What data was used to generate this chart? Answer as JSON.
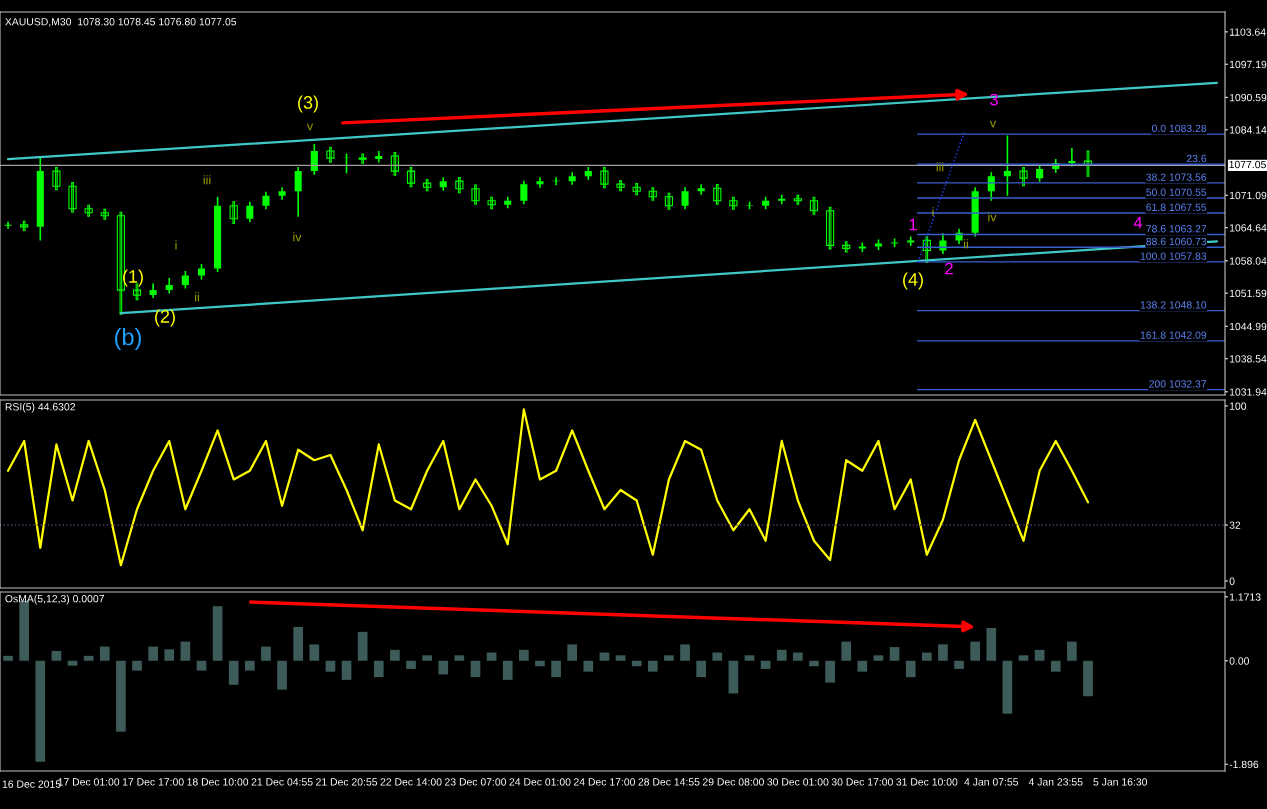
{
  "chart_data": [
    {
      "type": "candlestick",
      "title": "XAUUSD,M30  1078.30 1078.45 1076.80 1077.05",
      "color": "#00ff00",
      "categories": [
        null,
        null,
        null,
        null,
        null,
        null,
        null,
        null,
        null,
        null,
        null,
        null,
        null,
        null,
        null,
        null,
        null,
        null,
        null,
        null,
        null,
        null,
        null,
        null,
        null,
        null,
        null,
        null,
        null,
        null,
        null,
        null,
        null,
        null,
        null,
        null,
        null,
        null,
        null,
        null,
        null,
        null,
        null,
        null,
        null,
        null,
        null,
        null,
        null,
        null,
        null,
        null,
        null,
        null,
        null,
        null,
        null,
        null,
        null,
        null,
        null,
        null,
        null,
        null,
        null,
        null,
        null,
        null,
        null,
        null,
        null,
        null,
        null,
        null,
        null,
        null
      ],
      "ohlc": [
        [
          1065.0,
          1065.8,
          1064.4,
          1065.2
        ],
        [
          1065.2,
          1065.9,
          1064.1,
          1064.8
        ],
        [
          1064.8,
          1078.5,
          1062.1,
          1075.9
        ],
        [
          1075.9,
          1076.6,
          1072.2,
          1072.9
        ],
        [
          1072.9,
          1073.6,
          1067.7,
          1068.4
        ],
        [
          1068.4,
          1069.1,
          1066.9,
          1067.6
        ],
        [
          1067.6,
          1068.3,
          1066.3,
          1067.0
        ],
        [
          1067.0,
          1067.7,
          1047.4,
          1052.2
        ],
        [
          1052.2,
          1053.4,
          1050.3,
          1051.2
        ],
        [
          1051.2,
          1053.5,
          1050.6,
          1052.2
        ],
        [
          1052.2,
          1054.6,
          1051.5,
          1053.2
        ],
        [
          1053.2,
          1056.0,
          1052.5,
          1055.1
        ],
        [
          1055.1,
          1057.4,
          1054.3,
          1056.5
        ],
        [
          1056.5,
          1070.8,
          1055.8,
          1069.0
        ],
        [
          1069.0,
          1069.8,
          1065.5,
          1066.4
        ],
        [
          1066.4,
          1069.8,
          1065.7,
          1069.0
        ],
        [
          1069.0,
          1071.8,
          1068.3,
          1071.0
        ],
        [
          1071.0,
          1072.7,
          1070.2,
          1071.9
        ],
        [
          1071.9,
          1076.7,
          1066.8,
          1075.9
        ],
        [
          1075.9,
          1081.3,
          1075.2,
          1079.9
        ],
        [
          1079.9,
          1080.6,
          1077.7,
          1078.5
        ],
        [
          1078.5,
          1079.4,
          1075.5,
          1078.5
        ],
        [
          1078.5,
          1079.3,
          1077.5,
          1078.3
        ],
        [
          1078.3,
          1079.9,
          1077.6,
          1078.9
        ],
        [
          1078.9,
          1079.6,
          1075.1,
          1075.9
        ],
        [
          1075.9,
          1076.6,
          1072.8,
          1073.5
        ],
        [
          1073.5,
          1074.2,
          1072.0,
          1072.7
        ],
        [
          1072.7,
          1074.7,
          1072.0,
          1073.9
        ],
        [
          1073.9,
          1074.6,
          1071.6,
          1072.4
        ],
        [
          1072.4,
          1073.1,
          1069.3,
          1070.0
        ],
        [
          1070.0,
          1070.7,
          1068.4,
          1069.2
        ],
        [
          1069.2,
          1070.8,
          1068.5,
          1070.0
        ],
        [
          1070.0,
          1074.0,
          1069.3,
          1073.3
        ],
        [
          1073.3,
          1074.7,
          1072.6,
          1073.9
        ],
        [
          1073.9,
          1074.7,
          1073.1,
          1073.9
        ],
        [
          1073.9,
          1075.7,
          1073.2,
          1074.9
        ],
        [
          1074.9,
          1076.7,
          1074.2,
          1075.9
        ],
        [
          1075.9,
          1076.6,
          1072.6,
          1073.3
        ],
        [
          1073.3,
          1074.0,
          1072.0,
          1072.7
        ],
        [
          1072.7,
          1073.4,
          1071.2,
          1071.9
        ],
        [
          1071.9,
          1072.6,
          1070.1,
          1070.8
        ],
        [
          1070.8,
          1071.5,
          1068.3,
          1069.0
        ],
        [
          1069.0,
          1072.7,
          1068.3,
          1071.9
        ],
        [
          1071.9,
          1073.3,
          1071.2,
          1072.5
        ],
        [
          1072.5,
          1073.2,
          1069.3,
          1070.0
        ],
        [
          1070.0,
          1070.7,
          1068.3,
          1069.0
        ],
        [
          1069.0,
          1069.8,
          1068.3,
          1069.0
        ],
        [
          1069.0,
          1070.8,
          1068.3,
          1070.0
        ],
        [
          1070.0,
          1071.2,
          1069.3,
          1070.4
        ],
        [
          1070.4,
          1071.1,
          1069.3,
          1070.0
        ],
        [
          1070.0,
          1070.7,
          1067.3,
          1068.0
        ],
        [
          1068.0,
          1068.7,
          1060.4,
          1061.1
        ],
        [
          1061.1,
          1061.8,
          1059.8,
          1060.5
        ],
        [
          1060.5,
          1061.7,
          1059.8,
          1060.9
        ],
        [
          1060.9,
          1062.3,
          1060.2,
          1061.5
        ],
        [
          1061.5,
          1062.5,
          1060.8,
          1061.7
        ],
        [
          1061.7,
          1062.9,
          1061.0,
          1062.1
        ],
        [
          1062.1,
          1062.8,
          1057.7,
          1060.1
        ],
        [
          1060.1,
          1063.5,
          1059.4,
          1062.1
        ],
        [
          1062.1,
          1064.4,
          1061.4,
          1063.6
        ],
        [
          1063.6,
          1072.7,
          1062.9,
          1071.9
        ],
        [
          1071.9,
          1075.7,
          1070.0,
          1074.9
        ],
        [
          1074.9,
          1083.0,
          1071.0,
          1075.9
        ],
        [
          1075.9,
          1076.6,
          1073.0,
          1074.5
        ],
        [
          1074.5,
          1077.1,
          1073.8,
          1076.3
        ],
        [
          1076.3,
          1078.3,
          1075.6,
          1077.5
        ],
        [
          1077.5,
          1080.5,
          1076.8,
          1077.9
        ],
        [
          1077.9,
          1079.9,
          1074.9,
          1077.05
        ],
        null,
        null,
        null,
        null,
        null,
        null,
        null,
        null
      ],
      "series": [
        {
          "type": "line",
          "color": "#40c8c8",
          "values": [
            1078.3,
            null,
            null,
            null,
            null,
            null,
            null,
            null,
            null,
            null,
            null,
            null,
            null,
            null,
            null,
            null,
            null,
            null,
            null,
            null,
            null,
            null,
            null,
            null,
            null,
            null,
            null,
            null,
            null,
            null,
            null,
            null,
            null,
            null,
            null,
            null,
            null,
            null,
            null,
            null,
            null,
            null,
            null,
            null,
            null,
            null,
            null,
            null,
            null,
            null,
            null,
            null,
            null,
            null,
            null,
            null,
            null,
            null,
            null,
            null,
            null,
            null,
            null,
            null,
            null,
            null,
            null,
            null,
            null,
            null,
            null,
            null,
            null,
            null,
            null,
            1093.5
          ]
        },
        {
          "type": "line",
          "color": "#40c8c8",
          "values": [
            null,
            null,
            null,
            null,
            null,
            null,
            null,
            1047.6,
            null,
            null,
            null,
            null,
            null,
            null,
            null,
            null,
            null,
            null,
            null,
            null,
            null,
            null,
            null,
            null,
            null,
            null,
            null,
            null,
            null,
            null,
            null,
            null,
            null,
            null,
            null,
            null,
            null,
            null,
            null,
            null,
            null,
            null,
            null,
            null,
            null,
            null,
            null,
            null,
            null,
            null,
            null,
            null,
            null,
            null,
            null,
            null,
            null,
            null,
            null,
            null,
            null,
            null,
            null,
            null,
            null,
            null,
            null,
            null,
            null,
            null,
            null,
            null,
            null,
            null,
            null,
            1061.9
          ]
        }
      ],
      "ylim": [
        1031.3,
        1107.6
      ],
      "yticks": [
        1103.64,
        1097.19,
        1090.59,
        1084.14,
        1071.09,
        1064.64,
        1058.04,
        1051.59,
        1044.99,
        1038.54,
        1031.94
      ],
      "ref_lines": [
        {
          "axis": "y",
          "value": 1077.05,
          "label": "1077.05",
          "color": "#a0a0a0"
        },
        {
          "axis": "y",
          "value": 1083.28,
          "label": "0.0 1083.28",
          "color": "#3a5fcd"
        },
        {
          "axis": "y",
          "value": 1077.27,
          "color": "#3a5fcd"
        },
        {
          "axis": "y",
          "value": 1073.56,
          "label": "38.2 1073.56",
          "color": "#3a5fcd"
        },
        {
          "axis": "y",
          "value": 1070.55,
          "label": "50.0 1070.55",
          "color": "#3a5fcd"
        },
        {
          "axis": "y",
          "value": 1067.55,
          "label": "61.8 1067.55",
          "color": "#3a5fcd"
        },
        {
          "axis": "y",
          "value": 1063.27,
          "label": "78.6 1063.27",
          "color": "#3a5fcd"
        },
        {
          "axis": "y",
          "value": 1060.73,
          "label": "88.6 1060.73",
          "color": "#3a5fcd"
        },
        {
          "axis": "y",
          "value": 1057.83,
          "label": "100.0 1057.83",
          "color": "#3a5fcd"
        },
        {
          "axis": "y",
          "value": 1048.1,
          "label": "138.2 1048.10",
          "color": "#3a5fcd"
        },
        {
          "axis": "y",
          "value": 1042.09,
          "label": "161.8 1042.09",
          "color": "#3a5fcd"
        },
        {
          "axis": "y",
          "value": 1032.37,
          "label": "200 1032.37",
          "color": "#3a5fcd"
        }
      ],
      "annotations": [
        "(3)",
        "v",
        "iii",
        "i",
        "ii",
        "iv",
        "(1)",
        "(2)",
        "(b)",
        "1",
        "2",
        "3",
        "4",
        "(4)",
        "iii",
        "i",
        "ii",
        "iv",
        "v",
        {
          "text": "23.6",
          "y": 1077.27
        }
      ],
      "tick_labels": "y",
      "grid": false,
      "legend": false
    },
    {
      "type": "line",
      "title": "RSI(5) 44.6302",
      "categories": [
        null,
        null,
        null,
        null,
        null,
        null,
        null,
        null,
        null,
        null,
        null,
        null,
        null,
        null,
        null,
        null,
        null,
        null,
        null,
        null,
        null,
        null,
        null,
        null,
        null,
        null,
        null,
        null,
        null,
        null,
        null,
        null,
        null,
        null,
        null,
        null,
        null,
        null,
        null,
        null,
        null,
        null,
        null,
        null,
        null,
        null,
        null,
        null,
        null,
        null,
        null,
        null,
        null,
        null,
        null,
        null,
        null,
        null,
        null,
        null,
        null,
        null,
        null,
        null,
        null,
        null,
        null,
        null,
        null,
        null,
        null,
        null,
        null,
        null,
        null,
        null
      ],
      "series": [
        {
          "color": "#ffff00",
          "values": [
            63,
            80,
            19,
            78,
            46,
            80,
            52,
            9,
            41,
            63,
            80,
            41,
            63,
            86,
            58,
            63,
            80,
            43,
            75,
            69,
            72,
            52,
            29,
            78,
            46,
            41,
            63,
            80,
            41,
            58,
            43,
            21,
            98,
            58,
            63,
            86,
            63,
            41,
            52,
            46,
            15,
            58,
            80,
            75,
            46,
            29,
            41,
            23,
            80,
            46,
            23,
            12,
            69,
            63,
            80,
            41,
            58,
            15,
            35,
            69,
            92,
            69,
            46,
            23,
            63,
            80,
            63,
            45,
            null,
            null,
            null,
            null,
            null,
            null,
            null,
            null
          ]
        }
      ],
      "ylim": [
        -4,
        103.4
      ],
      "yticks": [
        0,
        32,
        100
      ],
      "ref_lines": [
        {
          "axis": "y",
          "value": 32,
          "color": "#5a3a6a",
          "line_style": "dotted"
        }
      ],
      "tick_labels": "y",
      "grid": false,
      "legend": false,
      "marker": "none",
      "line_style": "solid"
    },
    {
      "type": "bar",
      "title": "OsMA(5,12,3) 0.0007",
      "categories": [
        null,
        null,
        null,
        null,
        null,
        "17 Dec 01:00",
        null,
        null,
        null,
        "17 Dec 17:00",
        null,
        null,
        null,
        "18 Dec 10:00",
        null,
        null,
        null,
        "21 Dec 04:55",
        null,
        null,
        null,
        "21 Dec 20:55",
        null,
        null,
        null,
        "22 Dec 14:00",
        null,
        null,
        null,
        "23 Dec 07:00",
        null,
        null,
        null,
        "24 Dec 01:00",
        null,
        null,
        null,
        "24 Dec 17:00",
        null,
        null,
        null,
        "28 Dec 14:55",
        null,
        null,
        null,
        "29 Dec 08:00",
        null,
        null,
        null,
        "30 Dec 01:00",
        null,
        null,
        null,
        "30 Dec 17:00",
        null,
        null,
        null,
        "31 Dec 10:00",
        null,
        null,
        null,
        "4 Jan 07:55",
        null,
        null,
        null,
        "4 Jan 23:55",
        null,
        null,
        null,
        "5 Jan 16:30",
        null,
        null,
        null,
        null,
        null,
        null
      ],
      "series": [
        {
          "color": "#3d5c59",
          "values": [
            0.09,
            1.1,
            -1.85,
            0.18,
            -0.09,
            0.09,
            0.26,
            -1.3,
            -0.18,
            0.26,
            0.21,
            0.35,
            -0.18,
            1.0,
            -0.44,
            -0.18,
            0.26,
            -0.53,
            0.62,
            0.3,
            -0.2,
            -0.35,
            0.53,
            -0.3,
            0.2,
            -0.15,
            0.1,
            -0.25,
            0.1,
            -0.3,
            0.15,
            -0.35,
            0.2,
            -0.1,
            -0.3,
            0.3,
            -0.2,
            0.15,
            0.1,
            -0.1,
            -0.2,
            0.1,
            0.3,
            -0.3,
            0.15,
            -0.6,
            0.1,
            -0.15,
            0.2,
            0.15,
            -0.1,
            -0.4,
            0.35,
            -0.2,
            0.1,
            0.25,
            -0.3,
            0.15,
            0.3,
            -0.15,
            0.35,
            0.6,
            -0.97,
            0.1,
            0.2,
            -0.2,
            0.35,
            -0.65,
            null,
            null,
            null,
            null,
            null,
            null,
            null,
            null
          ]
        }
      ],
      "ylim": [
        -2.02,
        1.26
      ],
      "yticks": [
        1.1713,
        {
          "value": 0,
          "label": "0.00"
        },
        -1.896
      ],
      "annotations": [
        "16 Dec 2015"
      ],
      "grid": false,
      "legend": false
    }
  ]
}
